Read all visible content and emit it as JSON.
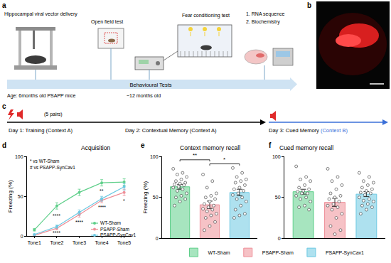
{
  "panel_labels": [
    "a",
    "b",
    "c",
    "d",
    "e",
    "f"
  ],
  "panel_a": {
    "steps": [
      "Hippocampal viral vector delivery",
      "Open field test",
      "Fear conditioning test"
    ],
    "assays": [
      "1. RNA sequence",
      "2. Biochemistry"
    ],
    "timeline": "Behavioural Tests",
    "age_start": "Age: 6months old PSAPP mice",
    "age_test": "~12 months old"
  },
  "panel_c": {
    "pairs": "(5 pairs)",
    "day1": "Day 1: Training (Context A)",
    "day2": "Day 2: Contextual Memory (Context A)",
    "day3": "Day 3: Cued Memory",
    "day3_context": "(Context B)"
  },
  "chart_data": [
    {
      "type": "line",
      "title": "Acquisition",
      "categories": [
        "Tone1",
        "Tone2",
        "Tone3",
        "Tone4",
        "Tone5"
      ],
      "y_label": "Freezing (%)",
      "ylim": [
        0,
        100
      ],
      "yticks": [
        0,
        50,
        100
      ],
      "grid": false,
      "marker": "circle",
      "legend": "bottom right",
      "series": [
        {
          "name": "WT-Sham",
          "color": "#5fcf8a",
          "values": [
            8,
            38,
            55,
            67,
            68
          ],
          "errors": [
            1.5,
            4,
            4,
            4,
            4
          ]
        },
        {
          "name": "PSAPP-Sham",
          "color": "#ee8f98",
          "values": [
            1,
            10,
            27,
            45,
            55
          ],
          "errors": [
            0.5,
            2,
            3,
            3,
            4
          ]
        },
        {
          "name": "PSAPP-SynCav1",
          "color": "#6cc8e2",
          "values": [
            2,
            12,
            30,
            47,
            62
          ],
          "errors": [
            0.8,
            2,
            3,
            3,
            4
          ]
        }
      ],
      "annotations": [
        {
          "text": "* vs WT-Sham"
        },
        {
          "text": "# vs PSAPP-SynCav1"
        },
        {
          "text": "****",
          "category": "Tone2",
          "y": 26
        },
        {
          "text": "****",
          "category": "Tone2",
          "y": 4
        },
        {
          "text": "****",
          "category": "Tone3",
          "y": 18
        },
        {
          "text": "**",
          "category": "Tone4",
          "y": 57
        },
        {
          "text": "****",
          "category": "Tone4",
          "y": 36
        },
        {
          "text": "*",
          "category": "Tone5",
          "y": 44
        }
      ]
    },
    {
      "type": "bar",
      "title": "Context memory recall",
      "categories": [
        "WT-Sham",
        "PSAPP-Sham",
        "PSAPP-SynCav1"
      ],
      "values": [
        63,
        41,
        56
      ],
      "errors": [
        3,
        4.5,
        4
      ],
      "colors": [
        "#5fcf8a",
        "#ee8f98",
        "#6cc8e2"
      ],
      "points": [
        [
          85,
          80,
          78,
          75,
          72,
          70,
          68,
          67,
          66,
          65,
          63,
          62,
          60,
          58,
          55,
          52,
          50,
          48,
          45,
          40
        ],
        [
          78,
          70,
          62,
          55,
          52,
          50,
          48,
          45,
          42,
          40,
          38,
          36,
          35,
          33,
          30,
          28,
          25,
          20,
          15,
          10
        ],
        [
          86,
          80,
          75,
          72,
          70,
          68,
          65,
          62,
          60,
          58,
          55,
          53,
          50,
          48,
          45,
          40,
          35,
          30,
          28,
          25
        ]
      ],
      "y_label": "Freezing (%)",
      "ylim": [
        0,
        100
      ],
      "yticks": [
        0,
        50,
        100
      ],
      "grid": false,
      "tick_labels": "y",
      "legend": "bottom",
      "annotations": [
        {
          "text": "**",
          "from": "WT-Sham",
          "to": "PSAPP-Sham",
          "y": 96
        },
        {
          "text": "*",
          "from": "PSAPP-Sham",
          "to": "PSAPP-SynCav1",
          "y": 91
        }
      ]
    },
    {
      "type": "bar",
      "title": "Cued memory recall",
      "categories": [
        "WT-Sham",
        "PSAPP-Sham",
        "PSAPP-SynCav1"
      ],
      "values": [
        57,
        44,
        54
      ],
      "errors": [
        3,
        5,
        3
      ],
      "colors": [
        "#5fcf8a",
        "#ee8f98",
        "#6cc8e2"
      ],
      "points": [
        [
          88,
          75,
          72,
          70,
          65,
          62,
          60,
          58,
          57,
          55,
          55,
          52,
          50,
          48,
          45,
          40,
          38,
          35
        ],
        [
          85,
          75,
          70,
          65,
          60,
          55,
          52,
          50,
          48,
          45,
          42,
          40,
          38,
          35,
          30,
          25,
          15,
          10,
          5
        ],
        [
          80,
          75,
          70,
          68,
          65,
          62,
          60,
          58,
          56,
          55,
          53,
          50,
          48,
          46,
          45,
          42,
          40,
          38,
          35,
          30
        ]
      ],
      "ylim": [
        0,
        100
      ],
      "yticks": [
        0,
        50,
        100
      ],
      "grid": false,
      "tick_labels": "y"
    }
  ]
}
